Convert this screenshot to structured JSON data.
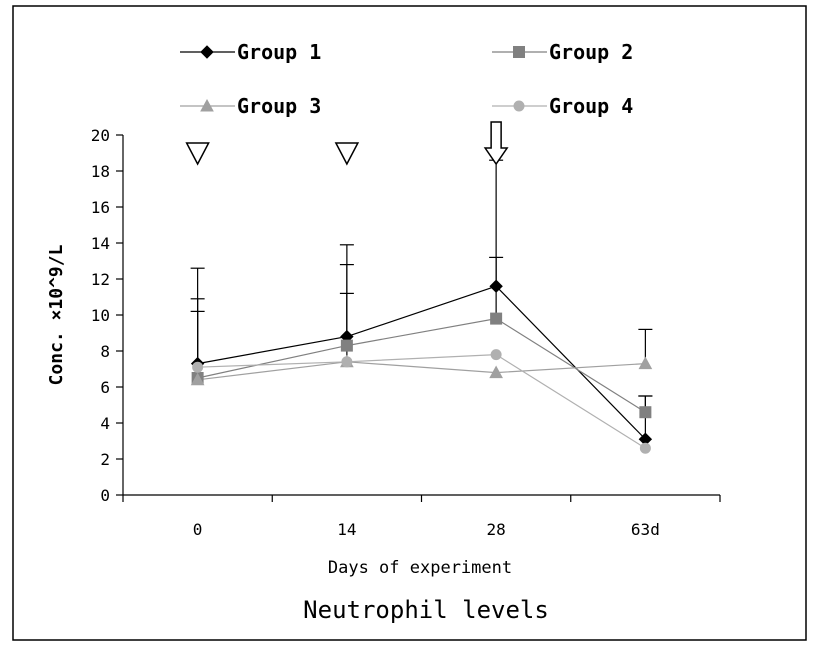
{
  "chart_data": {
    "type": "line",
    "title": "Neutrophil levels",
    "xlabel": "Days of experiment",
    "ylabel": "Conc. ×10^9/L",
    "categories": [
      "0",
      "14",
      "28",
      "63d"
    ],
    "ylim": [
      0,
      20
    ],
    "yticks": [
      "0",
      "2",
      "4",
      "6",
      "8",
      "10",
      "12",
      "14",
      "16",
      "18",
      "20"
    ],
    "grid": false,
    "legend": "top",
    "series": [
      {
        "name": "Group 1",
        "values": [
          7.3,
          8.8,
          11.6,
          3.1
        ],
        "error": [
          5.3,
          5.1,
          7.0,
          2.4
        ],
        "marker": "diamond",
        "color": "#000000"
      },
      {
        "name": "Group 2",
        "values": [
          6.5,
          8.3,
          9.8,
          4.6
        ],
        "error": [
          4.4,
          4.5,
          3.4,
          0.9
        ],
        "marker": "square",
        "color": "#808080"
      },
      {
        "name": "Group 3",
        "values": [
          6.4,
          7.4,
          6.8,
          7.3
        ],
        "error": [
          3.8,
          3.8,
          0,
          1.9
        ],
        "marker": "triangle",
        "color": "#a0a0a0"
      },
      {
        "name": "Group 4",
        "values": [
          7.1,
          7.4,
          7.8,
          2.6
        ],
        "error": [
          0,
          0,
          0,
          0
        ],
        "marker": "circle",
        "color": "#b0b0b0"
      }
    ],
    "annotations": [
      {
        "type": "triangle-down",
        "category": "0"
      },
      {
        "type": "triangle-down",
        "category": "14"
      },
      {
        "type": "arrow-down",
        "category": "28"
      }
    ]
  }
}
